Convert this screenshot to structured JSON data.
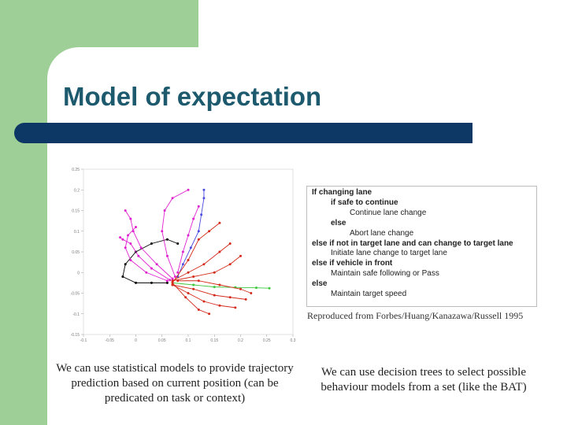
{
  "slide": {
    "title": "Model of expectation",
    "caption": "Reproduced from Forbes/Huang/Kanazawa/Russell 1995",
    "left_text": "We can use statistical models to provide trajectory prediction based on current position (can be predicated on task or context)",
    "right_text": "We can use decision trees to select possible behaviour models from a set (like the BAT)"
  },
  "decision_tree": {
    "lines": [
      {
        "kw": "If changing lane",
        "rest": ""
      },
      {
        "kw": "if safe to continue",
        "rest": ""
      },
      {
        "kw": "",
        "rest": "Continue lane change"
      },
      {
        "kw": "else",
        "rest": ""
      },
      {
        "kw": "",
        "rest": "Abort lane change"
      },
      {
        "kw": "else if not in target lane and can change to target lane",
        "rest": ""
      },
      {
        "kw": "",
        "rest": "Initiate lane change to target lane"
      },
      {
        "kw": "else if vehicle in front",
        "rest": ""
      },
      {
        "kw": "",
        "rest": "Maintain safe following or Pass"
      },
      {
        "kw": "else",
        "rest": ""
      },
      {
        "kw": "",
        "rest": "Maintain target speed"
      }
    ],
    "indents": [
      0,
      1,
      2,
      1,
      2,
      0,
      1,
      0,
      1,
      0,
      1
    ]
  },
  "colors": {
    "background_green": "#9ecf96",
    "title_text": "#1e5a6e",
    "title_bar": "#0d3866",
    "series_magenta": "#e020d0",
    "series_red": "#d42a1a",
    "series_green": "#3cc83c",
    "series_black": "#000000",
    "series_blue": "#4a4ae0"
  },
  "chart_data": {
    "type": "scatter",
    "title": "",
    "xlabel": "",
    "ylabel": "",
    "xlim": [
      -0.1,
      0.3
    ],
    "ylim": [
      -0.15,
      0.25
    ],
    "x_ticks": [
      "-0.1",
      "-0.05",
      "0",
      "0.05",
      "0.1",
      "0.15",
      "0.2",
      "0.25",
      "0.3"
    ],
    "y_ticks": [
      "0.25",
      "0.2",
      "0.15",
      "0.1",
      "0.05",
      "0",
      "-0.05",
      "-0.1",
      "-0.15"
    ],
    "series": [
      {
        "color": "#000000",
        "points": [
          [
            0.06,
            -0.025
          ],
          [
            0.03,
            -0.025
          ],
          [
            0.0,
            -0.025
          ],
          [
            -0.025,
            -0.01
          ],
          [
            -0.02,
            0.02
          ],
          [
            0.0,
            0.05
          ],
          [
            0.03,
            0.07
          ],
          [
            0.06,
            0.08
          ],
          [
            0.08,
            0.07
          ]
        ]
      },
      {
        "color": "#4a4ae0",
        "points": [
          [
            0.08,
            -0.01
          ],
          [
            0.09,
            0.02
          ],
          [
            0.105,
            0.06
          ],
          [
            0.12,
            0.1
          ],
          [
            0.125,
            0.14
          ],
          [
            0.13,
            0.18
          ],
          [
            0.13,
            0.2
          ]
        ]
      },
      {
        "color": "#3cc83c",
        "points": [
          [
            0.07,
            -0.025
          ],
          [
            0.11,
            -0.03
          ],
          [
            0.15,
            -0.035
          ],
          [
            0.19,
            -0.036
          ],
          [
            0.23,
            -0.037
          ],
          [
            0.255,
            -0.038
          ]
        ]
      },
      {
        "color": "#e020d0",
        "points": [
          [
            0.06,
            -0.02
          ],
          [
            0.02,
            0.0
          ],
          [
            -0.01,
            0.03
          ],
          [
            -0.02,
            0.06
          ],
          [
            -0.015,
            0.09
          ],
          [
            0.0,
            0.11
          ]
        ]
      },
      {
        "color": "#e020d0",
        "points": [
          [
            0.07,
            -0.015
          ],
          [
            0.04,
            0.02
          ],
          [
            0.01,
            0.06
          ],
          [
            -0.005,
            0.1
          ],
          [
            -0.01,
            0.13
          ],
          [
            -0.02,
            0.15
          ]
        ]
      },
      {
        "color": "#e020d0",
        "points": [
          [
            0.075,
            -0.01
          ],
          [
            0.06,
            0.04
          ],
          [
            0.05,
            0.1
          ],
          [
            0.055,
            0.15
          ],
          [
            0.07,
            0.18
          ],
          [
            0.1,
            0.2
          ]
        ]
      },
      {
        "color": "#e020d0",
        "points": [
          [
            0.08,
            0.0
          ],
          [
            0.09,
            0.05
          ],
          [
            0.1,
            0.09
          ],
          [
            0.11,
            0.13
          ],
          [
            0.12,
            0.16
          ]
        ]
      },
      {
        "color": "#e020d0",
        "points": [
          [
            0.065,
            -0.018
          ],
          [
            0.03,
            0.01
          ],
          [
            0.005,
            0.04
          ],
          [
            -0.01,
            0.07
          ],
          [
            -0.025,
            0.08
          ],
          [
            -0.03,
            0.085
          ]
        ]
      },
      {
        "color": "#d42a1a",
        "points": [
          [
            0.07,
            -0.02
          ],
          [
            0.1,
            0.0
          ],
          [
            0.13,
            0.02
          ],
          [
            0.16,
            0.05
          ],
          [
            0.18,
            0.07
          ]
        ]
      },
      {
        "color": "#d42a1a",
        "points": [
          [
            0.07,
            -0.02
          ],
          [
            0.11,
            -0.01
          ],
          [
            0.15,
            0.0
          ],
          [
            0.18,
            0.02
          ],
          [
            0.2,
            0.04
          ]
        ]
      },
      {
        "color": "#d42a1a",
        "points": [
          [
            0.07,
            -0.03
          ],
          [
            0.1,
            -0.05
          ],
          [
            0.13,
            -0.07
          ],
          [
            0.16,
            -0.08
          ],
          [
            0.19,
            -0.085
          ]
        ]
      },
      {
        "color": "#d42a1a",
        "points": [
          [
            0.07,
            -0.03
          ],
          [
            0.11,
            -0.04
          ],
          [
            0.15,
            -0.055
          ],
          [
            0.18,
            -0.06
          ],
          [
            0.21,
            -0.065
          ]
        ]
      },
      {
        "color": "#d42a1a",
        "points": [
          [
            0.07,
            -0.025
          ],
          [
            0.1,
            0.03
          ],
          [
            0.12,
            0.08
          ],
          [
            0.14,
            0.1
          ],
          [
            0.16,
            0.12
          ]
        ]
      },
      {
        "color": "#d42a1a",
        "points": [
          [
            0.08,
            -0.02
          ],
          [
            0.12,
            -0.02
          ],
          [
            0.16,
            -0.03
          ],
          [
            0.2,
            -0.04
          ],
          [
            0.22,
            -0.05
          ]
        ]
      },
      {
        "color": "#d42a1a",
        "points": [
          [
            0.07,
            -0.025
          ],
          [
            0.095,
            -0.06
          ],
          [
            0.12,
            -0.09
          ],
          [
            0.14,
            -0.1
          ]
        ]
      }
    ]
  }
}
